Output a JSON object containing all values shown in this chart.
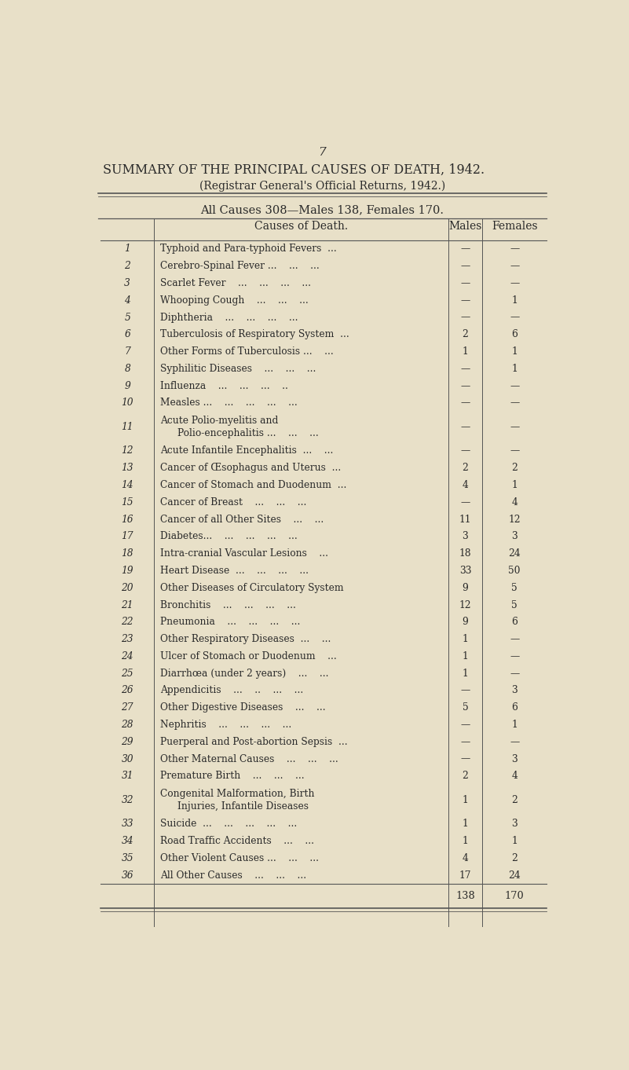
{
  "page_number": "7",
  "title": "SUMMARY OF THE PRINCIPAL CAUSES OF DEATH, 1942.",
  "subtitle": "(Registrar General's Official Returns, 1942.)",
  "totals_line": "All Causes 308—Males 138, Females 170.",
  "col_headers": [
    "Causes of Death.",
    "Males",
    "Females"
  ],
  "rows": [
    {
      "num": "1",
      "cause": "Typhoid and Para-typhoid Fevers  ...",
      "males": "—",
      "females": "—"
    },
    {
      "num": "2",
      "cause": "Cerebro-Spinal Fever ...    ...    ...",
      "males": "—",
      "females": "—"
    },
    {
      "num": "3",
      "cause": "Scarlet Fever    ...    ...    ...    ...",
      "males": "—",
      "females": "—"
    },
    {
      "num": "4",
      "cause": "Whooping Cough    ...    ...    ...",
      "males": "—",
      "females": "1"
    },
    {
      "num": "5",
      "cause": "Diphtheria    ...    ...    ...    ...",
      "males": "—",
      "females": "—"
    },
    {
      "num": "6",
      "cause": "Tuberculosis of Respiratory System  ...",
      "males": "2",
      "females": "6"
    },
    {
      "num": "7",
      "cause": "Other Forms of Tuberculosis ...    ...",
      "males": "1",
      "females": "1"
    },
    {
      "num": "8",
      "cause": "Syphilitic Diseases    ...    ...    ...",
      "males": "—",
      "females": "1"
    },
    {
      "num": "9",
      "cause": "Influenza    ...    ...    ...    ..",
      "males": "—",
      "females": "—"
    },
    {
      "num": "10",
      "cause": "Measles ...    ...    ...    ...    ...",
      "males": "—",
      "females": "—"
    },
    {
      "num": "11",
      "cause": "Acute Polio-myelitis and\nPolio-encephalitis ...    ...    ...",
      "males": "—",
      "females": "—"
    },
    {
      "num": "12",
      "cause": "Acute Infantile Encephalitis  ...    ...",
      "males": "—",
      "females": "—"
    },
    {
      "num": "13",
      "cause": "Cancer of Œsophagus and Uterus  ...",
      "males": "2",
      "females": "2"
    },
    {
      "num": "14",
      "cause": "Cancer of Stomach and Duodenum  ...",
      "males": "4",
      "females": "1"
    },
    {
      "num": "15",
      "cause": "Cancer of Breast    ...    ...    ...",
      "males": "—",
      "females": "4"
    },
    {
      "num": "16",
      "cause": "Cancer of all Other Sites    ...    ...",
      "males": "11",
      "females": "12"
    },
    {
      "num": "17",
      "cause": "Diabetes...    ...    ...    ...    ...",
      "males": "3",
      "females": "3"
    },
    {
      "num": "18",
      "cause": "Intra-cranial Vascular Lesions    ...",
      "males": "18",
      "females": "24"
    },
    {
      "num": "19",
      "cause": "Heart Disease  ...    ...    ...    ...",
      "males": "33",
      "females": "50"
    },
    {
      "num": "20",
      "cause": "Other Diseases of Circulatory System",
      "males": "9",
      "females": "5"
    },
    {
      "num": "21",
      "cause": "Bronchitis    ...    ...    ...    ...",
      "males": "12",
      "females": "5"
    },
    {
      "num": "22",
      "cause": "Pneumonia    ...    ...    ...    ...",
      "males": "9",
      "females": "6"
    },
    {
      "num": "23",
      "cause": "Other Respiratory Diseases  ...    ...",
      "males": "1",
      "females": "—"
    },
    {
      "num": "24",
      "cause": "Ulcer of Stomach or Duodenum    ...",
      "males": "1",
      "females": "—"
    },
    {
      "num": "25",
      "cause": "Diarrhœa (under 2 years)    ...    ...",
      "males": "1",
      "females": "—"
    },
    {
      "num": "26",
      "cause": "Appendicitis    ...    ..    ...    ...",
      "males": "—",
      "females": "3"
    },
    {
      "num": "27",
      "cause": "Other Digestive Diseases    ...    ...",
      "males": "5",
      "females": "6"
    },
    {
      "num": "28",
      "cause": "Nephritis    ...    ...    ...    ...",
      "males": "—",
      "females": "1"
    },
    {
      "num": "29",
      "cause": "Puerperal and Post-abortion Sepsis  ...",
      "males": "—",
      "females": "—"
    },
    {
      "num": "30",
      "cause": "Other Maternal Causes    ...    ...    ...",
      "males": "—",
      "females": "3"
    },
    {
      "num": "31",
      "cause": "Premature Birth    ...    ...    ...",
      "males": "2",
      "females": "4"
    },
    {
      "num": "32",
      "cause": "Congenital Malformation, Birth\nInjuries, Infantile Diseases",
      "males": "1",
      "females": "2"
    },
    {
      "num": "33",
      "cause": "Suicide  ...    ...    ...    ...    ...",
      "males": "1",
      "females": "3"
    },
    {
      "num": "34",
      "cause": "Road Traffic Accidents    ...    ...",
      "males": "1",
      "females": "1"
    },
    {
      "num": "35",
      "cause": "Other Violent Causes ...    ...    ...",
      "males": "4",
      "females": "2"
    },
    {
      "num": "36",
      "cause": "All Other Causes    ...    ...    ...",
      "males": "17",
      "females": "24"
    }
  ],
  "totals": {
    "males": "138",
    "females": "170"
  },
  "bg_color": "#e8e0c8",
  "text_color": "#2a2a2a",
  "line_color": "#555555",
  "double_rows": [
    "11",
    "32"
  ]
}
